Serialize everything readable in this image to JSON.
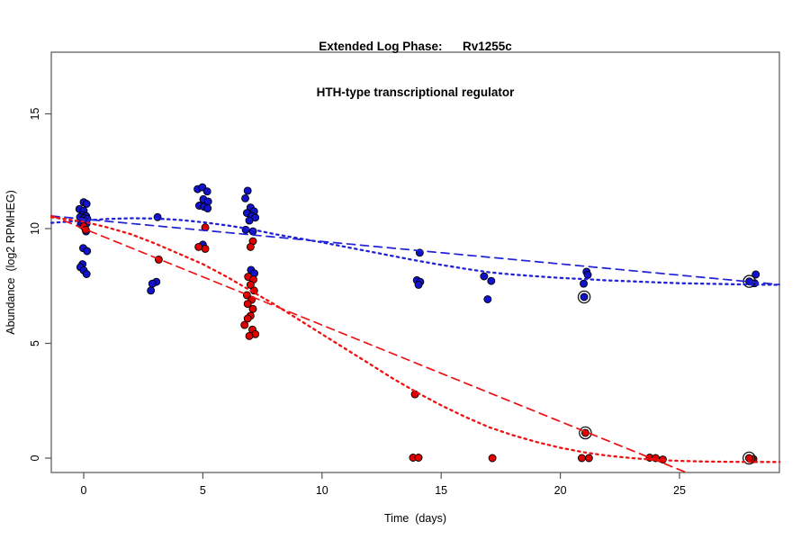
{
  "title": {
    "line1": "Extended Log Phase:      Rv1255c",
    "line2": "HTH-type transcriptional regulator"
  },
  "chart_data": {
    "type": "scatter",
    "title": "Extended Log Phase: Rv1255c — HTH-type transcriptional regulator",
    "xlabel": "Time  (days)",
    "ylabel": "Abundance  (log2 RPMHEG)",
    "x_ticks": [
      0,
      5,
      10,
      15,
      20,
      25
    ],
    "y_ticks": [
      0,
      5,
      10,
      15
    ],
    "xlim": [
      -1.36,
      29.2
    ],
    "ylim": [
      -0.63,
      17.69
    ],
    "grid": false,
    "legend": "none",
    "colors": {
      "blue_points": "#1212cc",
      "red_points": "#e00000",
      "blue_lines": "#2222d6",
      "red_lines": "#ee1111",
      "point_outline": "#000000",
      "axis": "#555555"
    },
    "series": [
      {
        "name": "blue-condition-points",
        "marker": "filled-circle",
        "color": "#1212cc",
        "points": [
          [
            0.0,
            11.15
          ],
          [
            0.12,
            11.08
          ],
          [
            -0.18,
            10.85
          ],
          [
            0.0,
            10.78
          ],
          [
            -0.05,
            10.6
          ],
          [
            0.1,
            10.55
          ],
          [
            -0.15,
            10.5
          ],
          [
            0.02,
            10.45
          ],
          [
            0.15,
            10.42
          ],
          [
            -0.08,
            10.35
          ],
          [
            0.05,
            10.3
          ],
          [
            0.12,
            10.22
          ],
          [
            -0.12,
            10.18
          ],
          [
            0.0,
            10.1
          ],
          [
            0.1,
            9.88
          ],
          [
            -0.02,
            9.15
          ],
          [
            0.14,
            9.02
          ],
          [
            -0.05,
            8.45
          ],
          [
            -0.14,
            8.32
          ],
          [
            0.0,
            8.18
          ],
          [
            0.12,
            8.02
          ],
          [
            3.1,
            10.5
          ],
          [
            3.05,
            7.68
          ],
          [
            2.88,
            7.6
          ],
          [
            2.82,
            7.3
          ],
          [
            4.78,
            11.72
          ],
          [
            4.98,
            11.8
          ],
          [
            5.18,
            11.62
          ],
          [
            5.02,
            11.28
          ],
          [
            5.22,
            11.18
          ],
          [
            4.85,
            11.0
          ],
          [
            5.05,
            10.95
          ],
          [
            5.2,
            10.88
          ],
          [
            5.0,
            9.3
          ],
          [
            6.88,
            11.65
          ],
          [
            6.78,
            11.32
          ],
          [
            7.0,
            10.92
          ],
          [
            7.15,
            10.75
          ],
          [
            6.85,
            10.68
          ],
          [
            7.05,
            10.55
          ],
          [
            7.2,
            10.48
          ],
          [
            6.95,
            10.35
          ],
          [
            6.8,
            9.95
          ],
          [
            7.1,
            9.88
          ],
          [
            7.02,
            8.2
          ],
          [
            7.16,
            8.05
          ],
          [
            14.1,
            8.95
          ],
          [
            13.98,
            7.75
          ],
          [
            14.12,
            7.68
          ],
          [
            14.05,
            7.55
          ],
          [
            16.8,
            7.92
          ],
          [
            17.1,
            7.72
          ],
          [
            16.95,
            6.92
          ],
          [
            21.1,
            8.12
          ],
          [
            21.15,
            7.98
          ],
          [
            20.98,
            7.6
          ],
          [
            28.2,
            8.0
          ],
          [
            28.15,
            7.62
          ]
        ]
      },
      {
        "name": "red-condition-points",
        "marker": "filled-circle",
        "color": "#e00000",
        "points": [
          [
            0.0,
            10.1
          ],
          [
            0.08,
            9.95
          ],
          [
            3.15,
            8.65
          ],
          [
            5.1,
            10.05
          ],
          [
            4.82,
            9.2
          ],
          [
            5.1,
            9.12
          ],
          [
            7.1,
            9.45
          ],
          [
            7.0,
            9.2
          ],
          [
            6.9,
            7.9
          ],
          [
            7.12,
            7.78
          ],
          [
            7.0,
            7.55
          ],
          [
            7.15,
            7.3
          ],
          [
            6.85,
            7.1
          ],
          [
            7.05,
            6.9
          ],
          [
            6.88,
            6.72
          ],
          [
            7.1,
            6.5
          ],
          [
            7.0,
            6.2
          ],
          [
            6.88,
            6.08
          ],
          [
            6.75,
            5.8
          ],
          [
            7.08,
            5.6
          ],
          [
            7.2,
            5.4
          ],
          [
            6.95,
            5.32
          ],
          [
            13.9,
            2.78
          ],
          [
            13.82,
            0.02
          ],
          [
            14.05,
            0.02
          ],
          [
            17.15,
            0.0
          ],
          [
            20.9,
            0.0
          ],
          [
            21.2,
            0.0
          ],
          [
            23.75,
            0.02
          ],
          [
            24.0,
            0.0
          ],
          [
            24.3,
            -0.06
          ],
          [
            28.1,
            -0.04
          ]
        ]
      }
    ],
    "highlighted_points": [
      {
        "name": "circled-blue-day21",
        "color": "#1212cc",
        "point": [
          21.0,
          7.02
        ]
      },
      {
        "name": "circled-blue-day28",
        "color": "#1212cc",
        "point": [
          27.93,
          7.7
        ]
      },
      {
        "name": "circled-red-day21",
        "color": "#e00000",
        "point": [
          21.05,
          1.1
        ]
      },
      {
        "name": "circled-red-day28",
        "color": "#e00000",
        "point": [
          27.92,
          0.0
        ]
      }
    ],
    "fit_lines": [
      {
        "name": "blue-linear-fit",
        "style": "dashed",
        "color": "#2222d6",
        "points": [
          [
            -1.36,
            10.55
          ],
          [
            29.2,
            7.56
          ]
        ]
      },
      {
        "name": "blue-logistic-fit",
        "style": "dotted",
        "color": "#2222d6",
        "points": [
          [
            -1.36,
            10.25
          ],
          [
            0,
            10.35
          ],
          [
            1,
            10.42
          ],
          [
            2,
            10.45
          ],
          [
            3,
            10.44
          ],
          [
            4,
            10.38
          ],
          [
            5,
            10.28
          ],
          [
            6,
            10.14
          ],
          [
            7,
            9.98
          ],
          [
            8,
            9.76
          ],
          [
            9,
            9.58
          ],
          [
            10,
            9.4
          ],
          [
            11,
            9.2
          ],
          [
            12,
            9.0
          ],
          [
            13,
            8.8
          ],
          [
            14,
            8.6
          ],
          [
            15,
            8.42
          ],
          [
            16,
            8.25
          ],
          [
            17,
            8.1
          ],
          [
            18,
            8.0
          ],
          [
            19,
            7.92
          ],
          [
            20,
            7.85
          ],
          [
            21,
            7.8
          ],
          [
            22,
            7.74
          ],
          [
            23,
            7.7
          ],
          [
            24,
            7.66
          ],
          [
            25,
            7.62
          ],
          [
            26,
            7.6
          ],
          [
            27,
            7.58
          ],
          [
            28,
            7.56
          ],
          [
            29.2,
            7.55
          ]
        ]
      },
      {
        "name": "red-linear-fit",
        "style": "dashed",
        "color": "#ee1111",
        "points": [
          [
            -1.36,
            10.57
          ],
          [
            25.3,
            -0.63
          ]
        ]
      },
      {
        "name": "red-logistic-fit",
        "style": "dotted",
        "color": "#ee1111",
        "points": [
          [
            -1.36,
            10.5
          ],
          [
            0,
            10.3
          ],
          [
            1,
            10.05
          ],
          [
            2,
            9.75
          ],
          [
            3,
            9.35
          ],
          [
            4,
            8.9
          ],
          [
            5,
            8.45
          ],
          [
            6,
            7.9
          ],
          [
            7,
            7.3
          ],
          [
            8,
            6.7
          ],
          [
            9,
            6.05
          ],
          [
            10,
            5.4
          ],
          [
            11,
            4.75
          ],
          [
            12,
            4.1
          ],
          [
            13,
            3.45
          ],
          [
            14,
            2.85
          ],
          [
            15,
            2.3
          ],
          [
            16,
            1.8
          ],
          [
            17,
            1.35
          ],
          [
            18,
            1.0
          ],
          [
            19,
            0.7
          ],
          [
            20,
            0.45
          ],
          [
            21,
            0.25
          ],
          [
            22,
            0.1
          ],
          [
            23,
            0.0
          ],
          [
            24,
            -0.08
          ],
          [
            25,
            -0.12
          ],
          [
            26,
            -0.15
          ],
          [
            27,
            -0.16
          ],
          [
            28,
            -0.17
          ],
          [
            29.2,
            -0.17
          ]
        ]
      }
    ]
  }
}
